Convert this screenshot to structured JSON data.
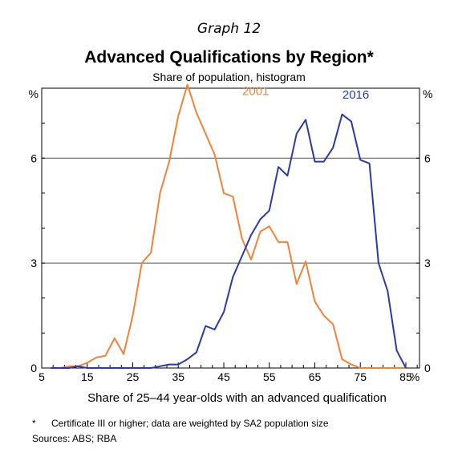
{
  "graph_number": "Graph 12",
  "footnote_marker": "*",
  "footnote": "Certificate III or higher; data are weighted by SA2 population size",
  "sources": "Sources: ABS; RBA",
  "colors": {
    "series_2001": "#f2823a",
    "series_2016": "#2b3aa8",
    "axis": "#000000"
  },
  "chart_data": {
    "type": "line",
    "title": "Advanced Qualifications by Region*",
    "subtitle": "Share of population, histogram",
    "xlabel": "Share of 25–44 year-olds with an advanced qualification",
    "x_unit": "%",
    "ylabel_left": "%",
    "ylabel_right": "%",
    "xlim": [
      5,
      88
    ],
    "ylim": [
      0,
      8
    ],
    "xticks": [
      5,
      15,
      25,
      35,
      45,
      55,
      65,
      75,
      85
    ],
    "yticks": [
      0,
      3,
      6
    ],
    "grid": "horizontal",
    "series": [
      {
        "name": "2001",
        "x": [
          7,
          9,
          11,
          13,
          15,
          17,
          19,
          21,
          23,
          25,
          27,
          29,
          31,
          33,
          35,
          37,
          39,
          41,
          43,
          45,
          47,
          49,
          51,
          53,
          55,
          57,
          59,
          61,
          63,
          65,
          67,
          69,
          71,
          73,
          75,
          77,
          79,
          81,
          83,
          85
        ],
        "values": [
          0,
          0,
          0.05,
          0.05,
          0.15,
          0.3,
          0.35,
          0.85,
          0.4,
          1.5,
          3.0,
          3.3,
          5.0,
          5.9,
          7.2,
          8.1,
          7.3,
          6.7,
          6.1,
          5.0,
          4.9,
          3.7,
          3.1,
          3.9,
          4.05,
          3.6,
          3.6,
          2.4,
          3.05,
          1.9,
          1.5,
          1.25,
          0.25,
          0.1,
          0,
          0,
          0,
          0,
          0,
          0
        ]
      },
      {
        "name": "2016",
        "x": [
          7,
          9,
          11,
          13,
          15,
          17,
          19,
          21,
          23,
          25,
          27,
          29,
          31,
          33,
          35,
          37,
          39,
          41,
          43,
          45,
          47,
          49,
          51,
          53,
          55,
          57,
          59,
          61,
          63,
          65,
          67,
          69,
          71,
          73,
          75,
          77,
          79,
          81,
          83,
          85
        ],
        "values": [
          0,
          0,
          0,
          0.05,
          0,
          0,
          0,
          0,
          0,
          0,
          0,
          0,
          0.05,
          0.1,
          0.1,
          0.25,
          0.45,
          1.2,
          1.1,
          1.6,
          2.6,
          3.2,
          3.8,
          4.25,
          4.5,
          5.75,
          5.5,
          6.7,
          7.1,
          5.9,
          5.9,
          6.3,
          7.25,
          7.05,
          5.95,
          5.85,
          3.0,
          2.2,
          0.5,
          0
        ]
      }
    ],
    "annotations": [
      {
        "text": "2001",
        "series": "2001",
        "x": 52,
        "y": 7.8
      },
      {
        "text": "2016",
        "series": "2016",
        "x": 74,
        "y": 7.7
      }
    ]
  }
}
